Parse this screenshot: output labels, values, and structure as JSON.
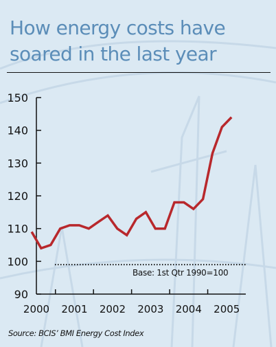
{
  "title": "How energy costs have soared in the last year",
  "source": "Source: BCIS’ BMI Energy Cost Index",
  "colors": {
    "line": "#b8282c",
    "title": "#5b8db8",
    "background": "#dbe9f3"
  },
  "chart_data": {
    "type": "line",
    "title": "How energy costs have soared in the last year",
    "xlabel": "",
    "ylabel": "",
    "ylim": [
      90,
      150
    ],
    "xlim": [
      2000.0,
      2005.5
    ],
    "yticks": [
      "90",
      "100",
      "110",
      "120",
      "130",
      "140",
      "150"
    ],
    "xticks": [
      "2000",
      "2001",
      "2002",
      "2003",
      "2004",
      "2005"
    ],
    "x": [
      1999.875,
      2000.125,
      2000.375,
      2000.625,
      2000.875,
      2001.125,
      2001.375,
      2001.625,
      2001.875,
      2002.125,
      2002.375,
      2002.625,
      2002.875,
      2003.125,
      2003.375,
      2003.625,
      2003.875,
      2004.125,
      2004.375,
      2004.625,
      2004.875,
      2005.125
    ],
    "series": [
      {
        "values": [
          109,
          104,
          105,
          110,
          111,
          111,
          110,
          112,
          114,
          110,
          108,
          113,
          115,
          110,
          110,
          118,
          118,
          116,
          119,
          133,
          141,
          144
        ]
      }
    ],
    "reference_line": {
      "value": 99,
      "label": "Base: 1st Qtr 1990=100"
    },
    "grid": false,
    "legend": "none"
  }
}
